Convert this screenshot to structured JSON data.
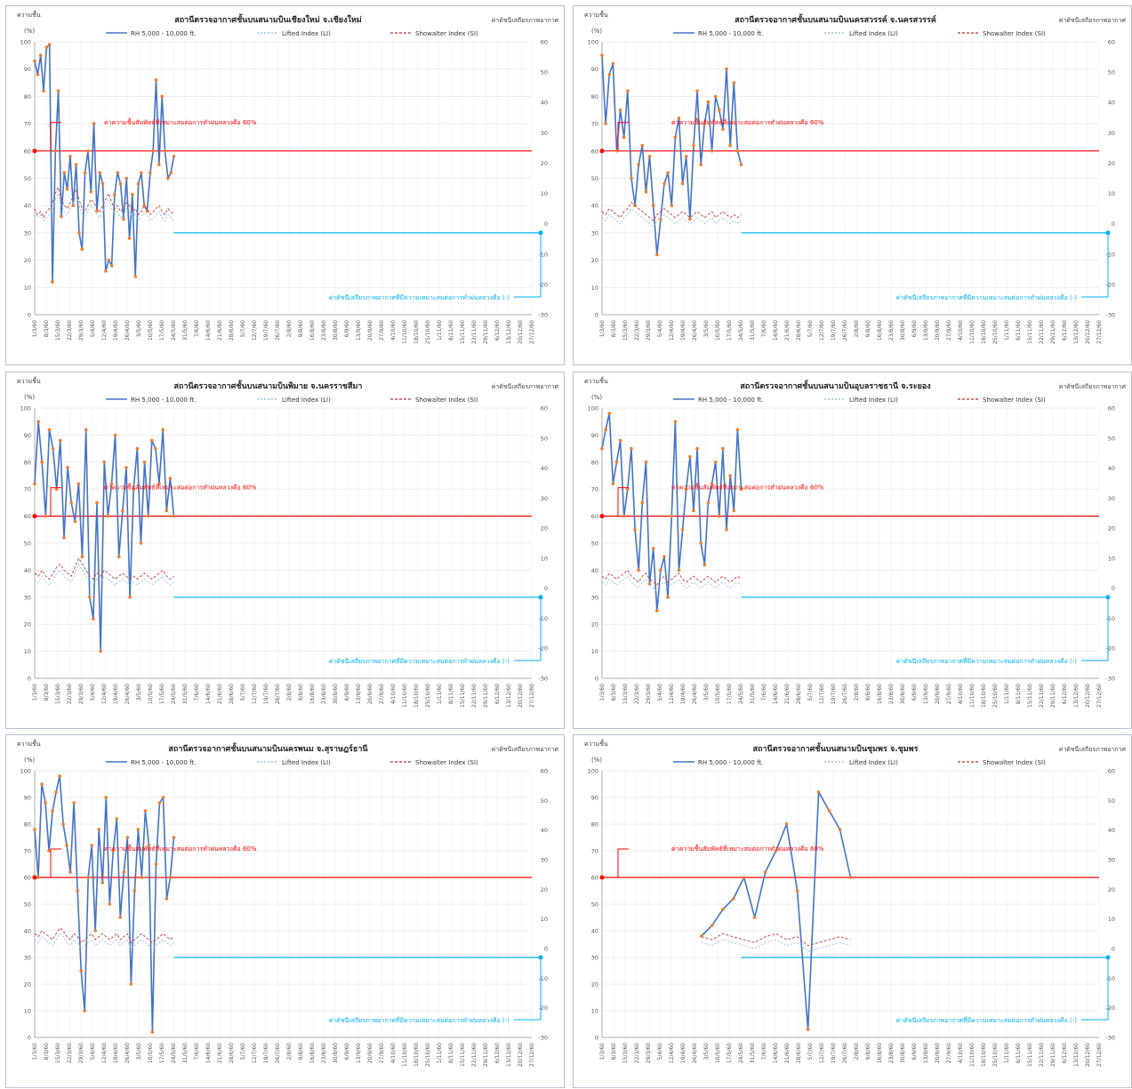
{
  "legend": {
    "rh": "RH 5,000 - 10,000 ft.",
    "li": "Lifted Index (LI)",
    "si": "Showalter Index (SI)"
  },
  "y_label_left": "ความชื้น",
  "y_unit_left": "(%)",
  "note_right": "ค่าดัชนีเสถียรภาพอากาศ",
  "rh_threshold_note": "ค่าความชื้นสัมพัทธ์ที่เหมาะสมต่อการทำฝนหลวงคือ 60%",
  "index_threshold_note": "ค่าดัชนีเสถียรภาพอากาศที่มีความเหมาะสมต่อการทำฝนหลวงคือ (-)",
  "colors": {
    "rh": "#4472c4",
    "rh_marker": "#ed7d31",
    "li": "#9dc3e6",
    "si": "#c0504d",
    "threshold_rh": "#ff0000",
    "threshold_idx": "#00b0f0"
  },
  "chart_data": [
    {
      "type": "line",
      "title": "สถานีตรวจอากาศชั้นบนสนามบินเชียงใหม่ จ.เชียงใหม่",
      "ylim_left": [
        0,
        100
      ],
      "ylim_right": [
        -30,
        60
      ],
      "rh_threshold": 60,
      "index_threshold": -3,
      "x_range": [
        "1/3/60",
        "31/12/60"
      ],
      "series": [
        {
          "name": "RH 5,000 - 10,000 ft.",
          "axis": "left",
          "values": [
            93,
            88,
            95,
            82,
            98,
            99,
            12,
            60,
            82,
            36,
            52,
            46,
            58,
            40,
            55,
            30,
            24,
            52,
            60,
            45,
            70,
            38,
            52,
            48,
            16,
            20,
            18,
            44,
            52,
            48,
            35,
            50,
            28,
            44,
            14,
            48,
            52,
            40,
            38,
            52,
            60,
            86,
            55,
            80,
            60,
            50,
            52,
            58
          ]
        },
        {
          "name": "Lifted Index (LI)",
          "axis": "right",
          "values": [
            4,
            2,
            3,
            1,
            2,
            3,
            5,
            8,
            10,
            6,
            4,
            3,
            5,
            7,
            9,
            6,
            3,
            2,
            4,
            6,
            5,
            3,
            2,
            4,
            6,
            8,
            5,
            3,
            4,
            2,
            3,
            5,
            4,
            2,
            3,
            1,
            2,
            4,
            3,
            1,
            2,
            3,
            4,
            2,
            1,
            3,
            2,
            1
          ]
        },
        {
          "name": "Showalter Index (SI)",
          "axis": "right",
          "values": [
            5,
            3,
            4,
            2,
            4,
            5,
            7,
            10,
            12,
            8,
            6,
            5,
            7,
            9,
            11,
            8,
            5,
            4,
            6,
            8,
            7,
            5,
            4,
            6,
            8,
            10,
            7,
            5,
            6,
            4,
            5,
            7,
            6,
            4,
            5,
            3,
            4,
            6,
            5,
            3,
            4,
            5,
            6,
            4,
            3,
            5,
            4,
            3
          ]
        }
      ]
    },
    {
      "type": "line",
      "title": "สถานีตรวจอากาศชั้นบนสนามบินนครสวรรค์ จ.นครสวรรค์",
      "ylim_left": [
        0,
        100
      ],
      "ylim_right": [
        -30,
        60
      ],
      "rh_threshold": 60,
      "index_threshold": -3,
      "x_range": [
        "1/3/60",
        "31/12/60"
      ],
      "series": [
        {
          "name": "RH 5,000 - 10,000 ft.",
          "axis": "left",
          "values": [
            95,
            70,
            88,
            92,
            60,
            75,
            65,
            82,
            50,
            40,
            55,
            62,
            45,
            58,
            40,
            22,
            35,
            48,
            52,
            40,
            65,
            72,
            48,
            58,
            35,
            62,
            82,
            55,
            70,
            78,
            60,
            80,
            75,
            68,
            90,
            62,
            85,
            60,
            55
          ]
        },
        {
          "name": "Lifted Index (LI)",
          "axis": "right",
          "values": [
            2,
            1,
            3,
            2,
            1,
            0,
            2,
            3,
            5,
            4,
            3,
            2,
            1,
            0,
            -1,
            1,
            2,
            3,
            2,
            1,
            0,
            1,
            2,
            1,
            0,
            1,
            2,
            1,
            0,
            1,
            2,
            0,
            1,
            2,
            1,
            0,
            1,
            0,
            1
          ]
        },
        {
          "name": "Showalter Index (SI)",
          "axis": "right",
          "values": [
            4,
            3,
            5,
            4,
            3,
            2,
            4,
            5,
            7,
            6,
            5,
            4,
            3,
            2,
            1,
            3,
            4,
            5,
            4,
            3,
            2,
            3,
            4,
            3,
            2,
            3,
            4,
            3,
            2,
            3,
            4,
            2,
            3,
            4,
            3,
            2,
            3,
            2,
            3
          ]
        }
      ]
    },
    {
      "type": "line",
      "title": "สถานีตรวจอากาศชั้นบนสนามบินพิมาย จ.นครราชสีมา",
      "ylim_left": [
        0,
        100
      ],
      "ylim_right": [
        -30,
        60
      ],
      "rh_threshold": 60,
      "index_threshold": -3,
      "x_range": [
        "1/3/60",
        "31/12/60"
      ],
      "series": [
        {
          "name": "RH 5,000 - 10,000 ft.",
          "axis": "left",
          "values": [
            72,
            95,
            80,
            60,
            92,
            85,
            70,
            88,
            52,
            78,
            65,
            58,
            72,
            45,
            92,
            30,
            22,
            65,
            10,
            80,
            60,
            72,
            90,
            45,
            62,
            78,
            30,
            70,
            85,
            50,
            80,
            60,
            88,
            85,
            72,
            92,
            62,
            74,
            60
          ]
        },
        {
          "name": "Lifted Index (LI)",
          "axis": "right",
          "values": [
            3,
            2,
            4,
            2,
            1,
            3,
            5,
            6,
            4,
            3,
            2,
            5,
            8,
            6,
            4,
            2,
            1,
            3,
            2,
            4,
            3,
            2,
            1,
            2,
            3,
            2,
            1,
            2,
            1,
            2,
            3,
            2,
            1,
            2,
            3,
            4,
            2,
            1,
            2
          ]
        },
        {
          "name": "Showalter Index (SI)",
          "axis": "right",
          "values": [
            5,
            4,
            6,
            4,
            3,
            5,
            7,
            8,
            6,
            5,
            4,
            7,
            10,
            8,
            6,
            4,
            3,
            5,
            4,
            6,
            5,
            4,
            3,
            4,
            5,
            4,
            3,
            4,
            3,
            4,
            5,
            4,
            3,
            4,
            5,
            6,
            4,
            3,
            4
          ]
        }
      ]
    },
    {
      "type": "line",
      "title": "สถานีตรวจอากาศชั้นบนสนามบินอุบลราชธานี จ.ระยอง",
      "ylim_left": [
        0,
        100
      ],
      "ylim_right": [
        -30,
        60
      ],
      "rh_threshold": 60,
      "index_threshold": -3,
      "x_range": [
        "1/3/60",
        "31/12/60"
      ],
      "series": [
        {
          "name": "RH 5,000 - 10,000 ft.",
          "axis": "left",
          "values": [
            85,
            92,
            98,
            72,
            80,
            88,
            60,
            70,
            85,
            55,
            40,
            65,
            80,
            35,
            48,
            25,
            40,
            45,
            30,
            60,
            95,
            40,
            55,
            70,
            82,
            62,
            85,
            50,
            42,
            65,
            72,
            80,
            60,
            85,
            55,
            75,
            62,
            92,
            70
          ]
        },
        {
          "name": "Lifted Index (LI)",
          "axis": "right",
          "values": [
            2,
            1,
            3,
            2,
            1,
            2,
            3,
            4,
            2,
            1,
            0,
            2,
            3,
            1,
            0,
            -1,
            1,
            2,
            0,
            1,
            2,
            3,
            1,
            0,
            1,
            2,
            1,
            0,
            1,
            2,
            1,
            0,
            1,
            2,
            1,
            0,
            1,
            2,
            1
          ]
        },
        {
          "name": "Showalter Index (SI)",
          "axis": "right",
          "values": [
            4,
            3,
            5,
            4,
            3,
            4,
            5,
            6,
            4,
            3,
            2,
            4,
            5,
            3,
            2,
            1,
            3,
            4,
            2,
            3,
            4,
            5,
            3,
            2,
            3,
            4,
            3,
            2,
            3,
            4,
            3,
            2,
            3,
            4,
            3,
            2,
            3,
            4,
            3
          ]
        }
      ]
    },
    {
      "type": "line",
      "title": "สถานีตรวจอากาศชั้นบนสนามบินนครพนม จ.สุราษฎร์ธานี",
      "ylim_left": [
        0,
        100
      ],
      "ylim_right": [
        -30,
        60
      ],
      "rh_threshold": 60,
      "index_threshold": -3,
      "x_range": [
        "1/3/60",
        "31/12/60"
      ],
      "series": [
        {
          "name": "RH 5,000 - 10,000 ft.",
          "axis": "left",
          "values": [
            78,
            60,
            95,
            88,
            70,
            85,
            92,
            98,
            80,
            72,
            62,
            88,
            55,
            25,
            10,
            60,
            72,
            40,
            78,
            58,
            90,
            50,
            70,
            82,
            45,
            62,
            75,
            20,
            55,
            78,
            60,
            85,
            72,
            2,
            65,
            88,
            90,
            52,
            60,
            75
          ]
        },
        {
          "name": "Lifted Index (LI)",
          "axis": "right",
          "values": [
            3,
            2,
            4,
            3,
            2,
            1,
            3,
            5,
            4,
            2,
            1,
            3,
            2,
            0,
            1,
            2,
            3,
            1,
            2,
            3,
            2,
            1,
            2,
            3,
            1,
            2,
            3,
            0,
            1,
            2,
            3,
            2,
            1,
            0,
            1,
            2,
            3,
            2,
            1,
            2
          ]
        },
        {
          "name": "Showalter Index (SI)",
          "axis": "right",
          "values": [
            5,
            4,
            6,
            5,
            4,
            3,
            5,
            7,
            6,
            4,
            3,
            5,
            4,
            2,
            3,
            4,
            5,
            3,
            4,
            5,
            4,
            3,
            4,
            5,
            3,
            4,
            5,
            2,
            3,
            4,
            5,
            4,
            3,
            2,
            3,
            4,
            5,
            4,
            3,
            4
          ]
        }
      ]
    },
    {
      "type": "line",
      "title": "สถานีตรวจอากาศชั้นบนสนามบินชุมพร จ.ชุมพร",
      "ylim_left": [
        0,
        100
      ],
      "ylim_right": [
        -30,
        60
      ],
      "rh_threshold": 60,
      "index_threshold": -3,
      "x_range": [
        "1/3/60",
        "31/12/60"
      ],
      "series": [
        {
          "name": "RH 5,000 - 10,000 ft.",
          "axis": "left",
          "values": [
            38,
            42,
            48,
            52,
            60,
            45,
            62,
            70,
            80,
            55,
            3,
            92,
            85,
            78,
            60
          ]
        },
        {
          "name": "Lifted Index (LI)",
          "axis": "right",
          "values": [
            2,
            1,
            3,
            2,
            1,
            0,
            2,
            3,
            1,
            2,
            -1,
            0,
            1,
            2,
            1
          ]
        },
        {
          "name": "Showalter Index (SI)",
          "axis": "right",
          "values": [
            4,
            3,
            5,
            4,
            3,
            2,
            4,
            5,
            3,
            4,
            1,
            2,
            3,
            4,
            3
          ]
        }
      ]
    }
  ]
}
